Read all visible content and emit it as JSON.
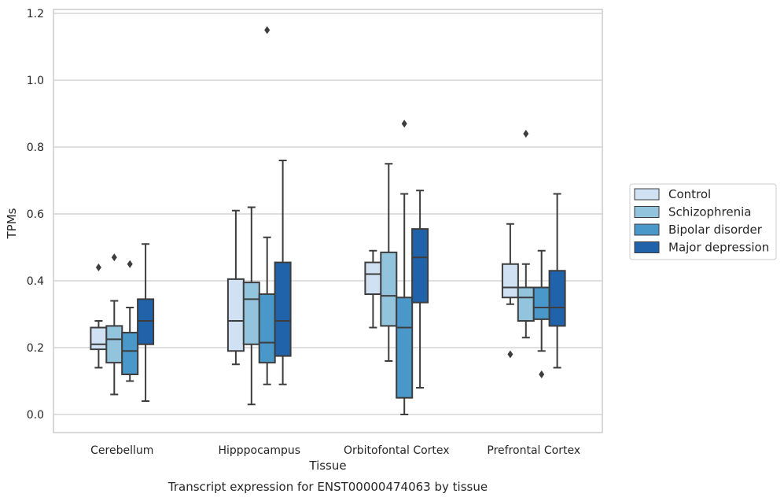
{
  "chart_data": {
    "type": "boxplot",
    "title": "Transcript expression for ENST00000474063 by tissue",
    "xlabel": "Tissue",
    "ylabel": "TPMs",
    "ylim": [
      -0.05,
      1.21
    ],
    "yticks": [
      0.0,
      0.2,
      0.4,
      0.6,
      0.8,
      1.0,
      1.2
    ],
    "ytick_labels": [
      "0.0",
      "0.2",
      "0.4",
      "0.6",
      "0.8",
      "1.0",
      "1.2"
    ],
    "categories": [
      "Cerebellum",
      "Hipppocampus",
      "Orbitofontal Cortex",
      "Prefrontal Cortex"
    ],
    "grid": "horizontal",
    "legend_position": "right",
    "series": [
      {
        "name": "Control",
        "color": "#cfe1f2",
        "boxes": [
          {
            "whislo": 0.14,
            "q1": 0.195,
            "med": 0.21,
            "q3": 0.26,
            "whishi": 0.28,
            "fliers": [
              0.44
            ]
          },
          {
            "whislo": 0.15,
            "q1": 0.19,
            "med": 0.28,
            "q3": 0.405,
            "whishi": 0.61,
            "fliers": []
          },
          {
            "whislo": 0.26,
            "q1": 0.36,
            "med": 0.42,
            "q3": 0.455,
            "whishi": 0.49,
            "fliers": []
          },
          {
            "whislo": 0.33,
            "q1": 0.35,
            "med": 0.38,
            "q3": 0.45,
            "whishi": 0.57,
            "fliers": [
              0.18
            ]
          }
        ]
      },
      {
        "name": "Schizophrenia",
        "color": "#93c4de",
        "boxes": [
          {
            "whislo": 0.06,
            "q1": 0.155,
            "med": 0.225,
            "q3": 0.265,
            "whishi": 0.34,
            "fliers": [
              0.47
            ]
          },
          {
            "whislo": 0.03,
            "q1": 0.21,
            "med": 0.345,
            "q3": 0.395,
            "whishi": 0.62,
            "fliers": []
          },
          {
            "whislo": 0.16,
            "q1": 0.265,
            "med": 0.355,
            "q3": 0.485,
            "whishi": 0.75,
            "fliers": []
          },
          {
            "whislo": 0.23,
            "q1": 0.28,
            "med": 0.35,
            "q3": 0.38,
            "whishi": 0.45,
            "fliers": [
              0.84
            ]
          }
        ]
      },
      {
        "name": "Bipolar disorder",
        "color": "#4a98c9",
        "boxes": [
          {
            "whislo": 0.1,
            "q1": 0.12,
            "med": 0.19,
            "q3": 0.245,
            "whishi": 0.32,
            "fliers": [
              0.45
            ]
          },
          {
            "whislo": 0.09,
            "q1": 0.155,
            "med": 0.215,
            "q3": 0.36,
            "whishi": 0.53,
            "fliers": [
              1.15
            ]
          },
          {
            "whislo": 0.0,
            "q1": 0.05,
            "med": 0.26,
            "q3": 0.35,
            "whishi": 0.66,
            "fliers": [
              0.87
            ]
          },
          {
            "whislo": 0.19,
            "q1": 0.285,
            "med": 0.32,
            "q3": 0.38,
            "whishi": 0.49,
            "fliers": [
              0.12
            ]
          }
        ]
      },
      {
        "name": "Major depression",
        "color": "#2163aa",
        "boxes": [
          {
            "whislo": 0.04,
            "q1": 0.21,
            "med": 0.28,
            "q3": 0.345,
            "whishi": 0.51,
            "fliers": []
          },
          {
            "whislo": 0.09,
            "q1": 0.175,
            "med": 0.28,
            "q3": 0.455,
            "whishi": 0.76,
            "fliers": []
          },
          {
            "whislo": 0.08,
            "q1": 0.335,
            "med": 0.47,
            "q3": 0.555,
            "whishi": 0.67,
            "fliers": []
          },
          {
            "whislo": 0.14,
            "q1": 0.265,
            "med": 0.32,
            "q3": 0.43,
            "whishi": 0.66,
            "fliers": []
          }
        ]
      }
    ]
  }
}
